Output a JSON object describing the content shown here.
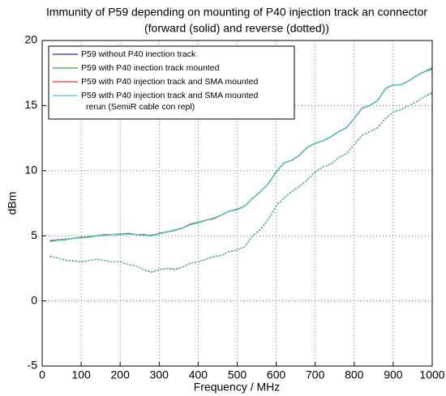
{
  "chart_data": {
    "type": "line",
    "title": "Immunity of P59 depending on mounting of P40 injection track an connector",
    "subtitle": "(forward (solid) and reverse (dotted))",
    "xlabel": "Frequency / MHz",
    "ylabel": "dBm",
    "x": [
      20,
      40,
      60,
      80,
      100,
      120,
      140,
      160,
      180,
      200,
      220,
      240,
      260,
      280,
      300,
      320,
      340,
      360,
      380,
      400,
      420,
      440,
      460,
      480,
      500,
      520,
      540,
      560,
      580,
      600,
      620,
      640,
      660,
      680,
      700,
      720,
      740,
      760,
      780,
      800,
      820,
      840,
      860,
      880,
      900,
      920,
      940,
      960,
      980,
      1000
    ],
    "series": [
      {
        "name": "P59 without P40 inection track",
        "color": "#2a2ab8",
        "values": [
          4.6,
          4.65,
          4.7,
          4.8,
          4.85,
          4.9,
          5.0,
          5.05,
          5.1,
          5.1,
          5.15,
          5.1,
          5.05,
          5.0,
          5.15,
          5.3,
          5.4,
          5.6,
          5.9,
          6.0,
          6.2,
          6.3,
          6.6,
          6.9,
          7.0,
          7.3,
          7.9,
          8.4,
          9.0,
          9.9,
          10.6,
          10.8,
          11.2,
          11.8,
          12.1,
          12.3,
          12.6,
          13.0,
          13.3,
          14.0,
          14.8,
          15.0,
          15.4,
          16.3,
          16.6,
          16.6,
          16.9,
          17.3,
          17.6,
          17.9
        ],
        "reverse": [
          3.4,
          3.3,
          3.1,
          3.05,
          3.0,
          3.1,
          3.2,
          3.1,
          3.0,
          3.0,
          2.8,
          2.7,
          2.4,
          2.2,
          2.4,
          2.5,
          2.4,
          2.6,
          2.9,
          3.0,
          3.2,
          3.4,
          3.5,
          3.8,
          3.9,
          4.2,
          5.0,
          5.5,
          6.3,
          7.3,
          7.9,
          8.4,
          8.8,
          9.3,
          9.9,
          10.3,
          10.5,
          11.0,
          11.3,
          12.0,
          12.7,
          13.0,
          13.3,
          14.0,
          14.5,
          14.7,
          15.0,
          15.3,
          15.7,
          16.0
        ]
      },
      {
        "name": "P59 with P40 inection track mounted",
        "color": "#3aaa3a",
        "values": [
          4.65,
          4.65,
          4.75,
          4.8,
          4.85,
          4.95,
          5.0,
          5.05,
          5.1,
          5.15,
          5.15,
          5.1,
          5.05,
          5.05,
          5.15,
          5.3,
          5.45,
          5.6,
          5.9,
          6.05,
          6.2,
          6.3,
          6.6,
          6.9,
          7.05,
          7.3,
          7.9,
          8.4,
          9.0,
          9.9,
          10.6,
          10.8,
          11.2,
          11.8,
          12.1,
          12.3,
          12.6,
          13.0,
          13.3,
          14.0,
          14.8,
          15.0,
          15.4,
          16.3,
          16.6,
          16.6,
          16.9,
          17.3,
          17.6,
          17.8
        ],
        "reverse": [
          3.4,
          3.3,
          3.15,
          3.05,
          3.0,
          3.1,
          3.2,
          3.1,
          3.0,
          3.0,
          2.8,
          2.7,
          2.4,
          2.25,
          2.4,
          2.5,
          2.4,
          2.6,
          2.9,
          3.0,
          3.2,
          3.4,
          3.5,
          3.8,
          3.9,
          4.2,
          5.0,
          5.5,
          6.3,
          7.3,
          7.9,
          8.4,
          8.8,
          9.3,
          9.9,
          10.3,
          10.5,
          11.0,
          11.3,
          12.0,
          12.7,
          13.0,
          13.3,
          14.0,
          14.5,
          14.7,
          15.0,
          15.3,
          15.7,
          15.9
        ]
      },
      {
        "name": "P59 with P40 injection track and SMA mounted",
        "color": "#e03a3a",
        "values": [
          4.6,
          4.7,
          4.7,
          4.8,
          4.9,
          4.9,
          5.0,
          5.1,
          5.1,
          5.1,
          5.2,
          5.1,
          5.1,
          5.0,
          5.2,
          5.3,
          5.4,
          5.6,
          5.9,
          6.0,
          6.2,
          6.35,
          6.6,
          6.9,
          7.0,
          7.3,
          7.9,
          8.4,
          9.0,
          9.9,
          10.6,
          10.8,
          11.2,
          11.8,
          12.1,
          12.3,
          12.6,
          13.0,
          13.3,
          14.0,
          14.8,
          15.0,
          15.4,
          16.3,
          16.6,
          16.6,
          16.9,
          17.3,
          17.6,
          17.9
        ],
        "reverse": [
          3.45,
          3.3,
          3.1,
          3.1,
          3.0,
          3.1,
          3.2,
          3.1,
          3.0,
          3.0,
          2.8,
          2.7,
          2.4,
          2.2,
          2.4,
          2.5,
          2.45,
          2.6,
          2.9,
          3.0,
          3.2,
          3.4,
          3.5,
          3.8,
          3.9,
          4.2,
          5.0,
          5.5,
          6.3,
          7.3,
          7.9,
          8.4,
          8.8,
          9.3,
          9.9,
          10.3,
          10.5,
          11.0,
          11.3,
          12.0,
          12.7,
          13.0,
          13.3,
          14.0,
          14.5,
          14.7,
          15.0,
          15.3,
          15.7,
          16.0
        ]
      },
      {
        "name": [
          "P59 with P40 injection track and SMA mounted",
          "rerun (SemiR cable con repl)"
        ],
        "color": "#40cccc",
        "values": [
          4.55,
          4.65,
          4.7,
          4.8,
          4.85,
          4.9,
          5.0,
          5.05,
          5.1,
          5.1,
          5.15,
          5.1,
          5.05,
          5.0,
          5.15,
          5.3,
          5.4,
          5.6,
          5.85,
          6.0,
          6.2,
          6.3,
          6.6,
          6.9,
          7.0,
          7.3,
          7.9,
          8.4,
          9.0,
          9.9,
          10.6,
          10.8,
          11.2,
          11.8,
          12.1,
          12.3,
          12.6,
          13.0,
          13.3,
          14.0,
          14.8,
          15.0,
          15.4,
          16.3,
          16.6,
          16.6,
          16.9,
          17.3,
          17.6,
          17.9
        ],
        "reverse": [
          3.4,
          3.3,
          3.1,
          3.05,
          3.0,
          3.1,
          3.2,
          3.1,
          3.0,
          3.0,
          2.8,
          2.7,
          2.4,
          2.2,
          2.4,
          2.5,
          2.4,
          2.6,
          2.9,
          3.0,
          3.2,
          3.4,
          3.5,
          3.8,
          3.9,
          4.2,
          5.0,
          5.5,
          6.3,
          7.3,
          7.9,
          8.4,
          8.8,
          9.3,
          9.9,
          10.3,
          10.5,
          11.0,
          11.3,
          12.0,
          12.7,
          13.0,
          13.3,
          14.0,
          14.5,
          14.7,
          15.0,
          15.3,
          15.7,
          16.0
        ]
      }
    ],
    "xlim": [
      0,
      1000
    ],
    "xticks": [
      0,
      100,
      200,
      300,
      400,
      500,
      600,
      700,
      800,
      900,
      1000
    ],
    "ylim": [
      -5,
      20
    ],
    "yticks": [
      -5,
      0,
      5,
      10,
      15,
      20
    ],
    "grid": true,
    "legend": "upper left"
  }
}
